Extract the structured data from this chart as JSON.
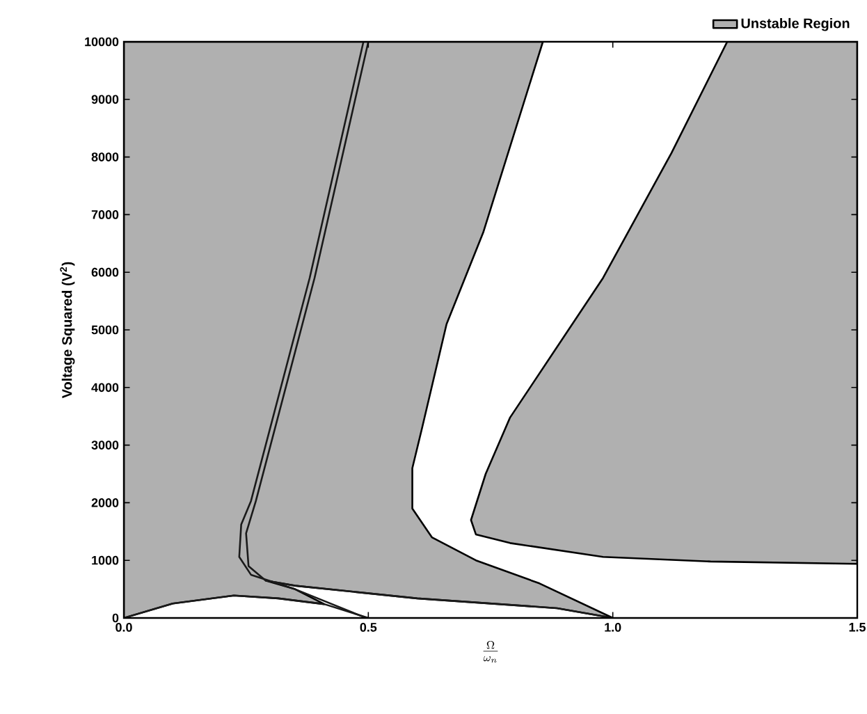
{
  "chart_data": {
    "type": "area",
    "xlabel": "\\frac{\\Omega}{\\omega_n}",
    "ylabel": "Voltage Squared (V$^{2}$)",
    "xlim": [
      0,
      1.5
    ],
    "ylim": [
      0,
      10000
    ],
    "xticks": [
      {
        "value": 0,
        "label": "0.0"
      },
      {
        "value": 0.5,
        "label": "0.5"
      },
      {
        "value": 1.0,
        "label": "1.0"
      },
      {
        "value": 1.5,
        "label": "1.5"
      }
    ],
    "yticks": [
      0,
      1000,
      2000,
      3000,
      4000,
      5000,
      6000,
      7000,
      8000,
      9000,
      10000
    ],
    "legend": "top right",
    "series": [
      {
        "name": "Unstable Region",
        "color": "#b0b0b0",
        "x": [
          0,
          0.1,
          0.225,
          0.316,
          0.41,
          0.35,
          0.29,
          0.35,
          0.6,
          0.886,
          1.0,
          0.85,
          0.72,
          0.63,
          0.59,
          0.59,
          0.61,
          0.66,
          0.735,
          0.857,
          0,
          0
        ],
        "values": [
          0,
          250,
          390,
          340,
          240,
          500,
          650,
          560,
          340,
          170,
          0,
          600,
          1000,
          1400,
          1900,
          2600,
          3300,
          5100,
          6690,
          10000,
          10000,
          0
        ]
      },
      {
        "color": "#b0b0b0",
        "x": [
          1.234,
          1.12,
          0.98,
          0.79,
          0.74,
          0.71,
          0.72,
          0.79,
          0.98,
          1.2,
          1.5,
          1.5,
          1.234
        ],
        "values": [
          10000,
          8070,
          5900,
          3480,
          2500,
          1700,
          1450,
          1300,
          1060,
          980,
          940,
          10000,
          10000
        ]
      },
      {
        "type": "line",
        "color": "#1a1a1a",
        "x": [
          0,
          0.1,
          0.225,
          0.316,
          0.41,
          0.5
        ],
        "values": [
          0,
          250,
          390,
          340,
          240,
          0
        ]
      },
      {
        "type": "line",
        "color": "#1a1a1a",
        "x": [
          0.496,
          0.35,
          0.26,
          0.236,
          0.24,
          0.26,
          0.38,
          0.49
        ],
        "values": [
          0,
          500,
          750,
          1060,
          1620,
          2030,
          5900,
          10000
        ]
      },
      {
        "type": "line",
        "color": "#1a1a1a",
        "x": [
          1.0,
          0.886,
          0.6,
          0.35,
          0.29,
          0.255,
          0.25,
          0.27,
          0.39,
          0.5
        ],
        "values": [
          0,
          170,
          340,
          560,
          650,
          900,
          1470,
          2030,
          5900,
          10000
        ]
      }
    ]
  }
}
